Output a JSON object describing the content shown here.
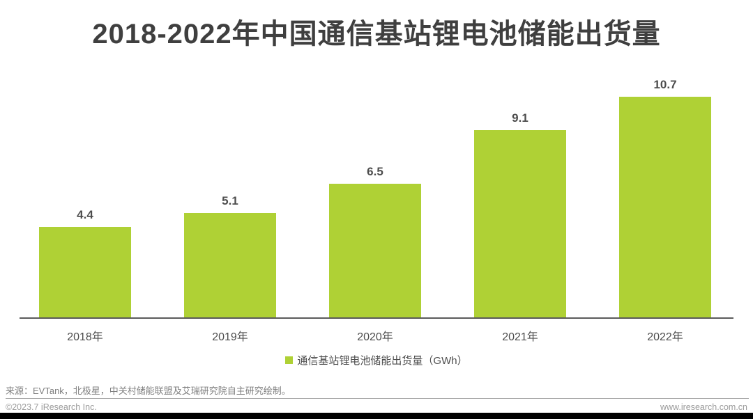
{
  "page": {
    "title": "2018-2022年中国通信基站锂电池储能出货量",
    "source_note": "来源：EVTank，北极星，中关村储能联盟及艾瑞研究院自主研究绘制。",
    "footer": {
      "copyright": "©2023.7 iResearch Inc.",
      "website": "www.iresearch.com.cn"
    }
  },
  "chart_data": {
    "type": "bar",
    "title": "2018-2022年中国通信基站锂电池储能出货量",
    "categories": [
      "2018年",
      "2019年",
      "2020年",
      "2021年",
      "2022年"
    ],
    "values": [
      4.4,
      5.1,
      6.5,
      9.1,
      10.7
    ],
    "value_labels": [
      "4.4",
      "5.1",
      "6.5",
      "9.1",
      "10.7"
    ],
    "unit": "GWh",
    "xlabel": "",
    "ylabel": "",
    "ylim": [
      0,
      12
    ],
    "grid": false,
    "bar_color": "#AFD135",
    "label_color": "#4d4d4d",
    "legend": {
      "label": "通信基站锂电池储能出货量（GWh）",
      "position": "bottom",
      "swatch_color": "#AFD135"
    }
  }
}
